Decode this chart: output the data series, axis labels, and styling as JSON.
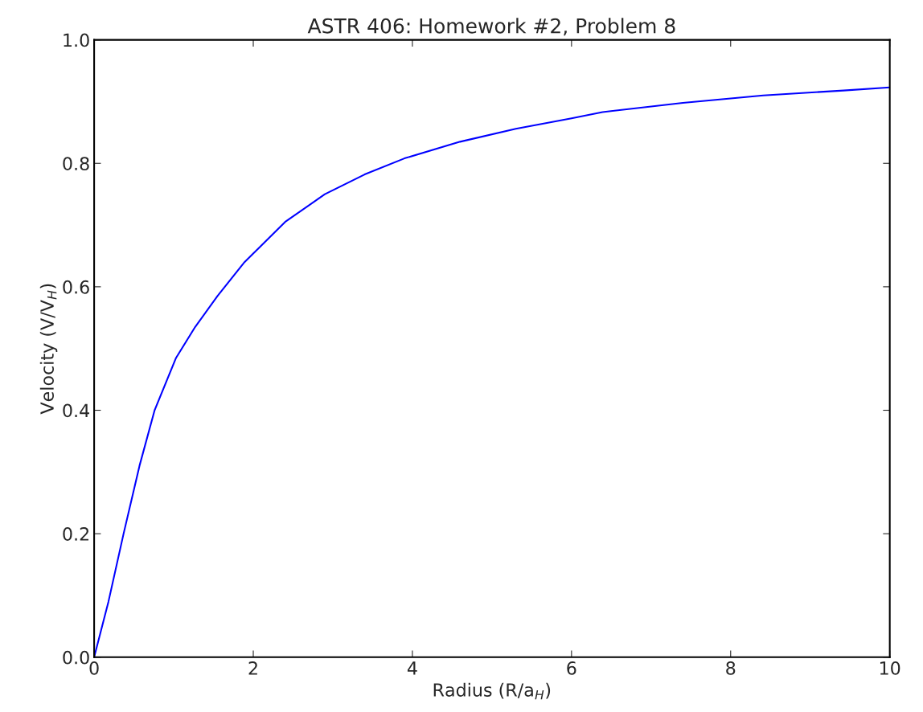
{
  "chart_data": {
    "type": "line",
    "title": "ASTR 406: Homework #2, Problem 8",
    "xlabel": "Radius (R/a$_{H}$)",
    "ylabel": "Velocity (V/V$_{H}$)",
    "x": [
      0,
      0.18,
      0.37,
      0.57,
      0.76,
      1.03,
      1.27,
      1.55,
      1.89,
      2.4,
      2.9,
      3.4,
      3.9,
      4.6,
      5.3,
      6.0,
      6.39,
      7.4,
      8.41,
      9.42,
      10
    ],
    "series": [
      {
        "color": "#0000ff",
        "values": [
          0,
          0.09,
          0.2,
          0.31,
          0.4,
          0.485,
          0.535,
          0.585,
          0.64,
          0.705,
          0.75,
          0.782,
          0.808,
          0.835,
          0.856,
          0.873,
          0.883,
          0.898,
          0.91,
          0.918,
          0.923
        ]
      }
    ],
    "xlim": [
      0,
      10
    ],
    "ylim": [
      0,
      1.0
    ],
    "xticks": [
      0,
      2,
      4,
      6,
      8,
      10
    ],
    "yticks": [
      {
        "value": 0,
        "label": "0.0"
      },
      {
        "value": 0.2,
        "label": "0.2"
      },
      {
        "value": 0.4,
        "label": "0.4"
      },
      {
        "value": 0.6,
        "label": "0.6"
      },
      {
        "value": 0.8,
        "label": "0.8"
      },
      {
        "value": 1.0,
        "label": "1.0"
      }
    ],
    "grid": false,
    "marker": "none",
    "line_style": "solid"
  }
}
